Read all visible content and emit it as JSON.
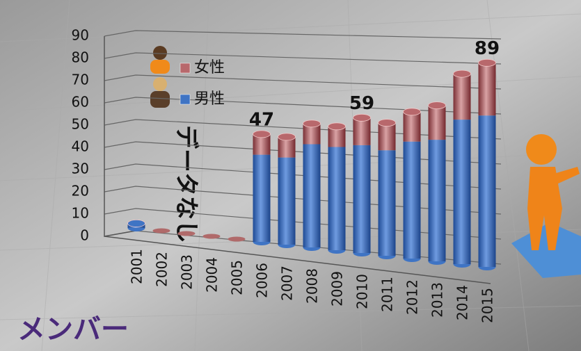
{
  "chart_data": {
    "type": "bar",
    "stacked": true,
    "title": "メンバー",
    "annotation": "データなし",
    "categories": [
      "2001",
      "2002",
      "2003",
      "2004",
      "2005",
      "2006",
      "2007",
      "2008",
      "2009",
      "2010",
      "2011",
      "2012",
      "2013",
      "2014",
      "2015"
    ],
    "series": [
      {
        "name": "男性",
        "color": "#3f74c4",
        "values": [
          2,
          null,
          null,
          null,
          null,
          38,
          38,
          45,
          45,
          47,
          46,
          51,
          53,
          63,
          66
        ]
      },
      {
        "name": "女性",
        "color": "#b8686c",
        "values": [
          0,
          null,
          null,
          null,
          null,
          9,
          9,
          9,
          9,
          12,
          12,
          13,
          15,
          20,
          23
        ]
      }
    ],
    "totals": [
      {
        "x": "2006",
        "value": 47
      },
      {
        "x": "2010",
        "value": 59
      },
      {
        "x": "2015",
        "value": 89
      }
    ],
    "ylim": [
      0,
      90
    ],
    "yticks": [
      0,
      10,
      20,
      30,
      40,
      50,
      60,
      70,
      80,
      90
    ],
    "grid": true
  }
}
